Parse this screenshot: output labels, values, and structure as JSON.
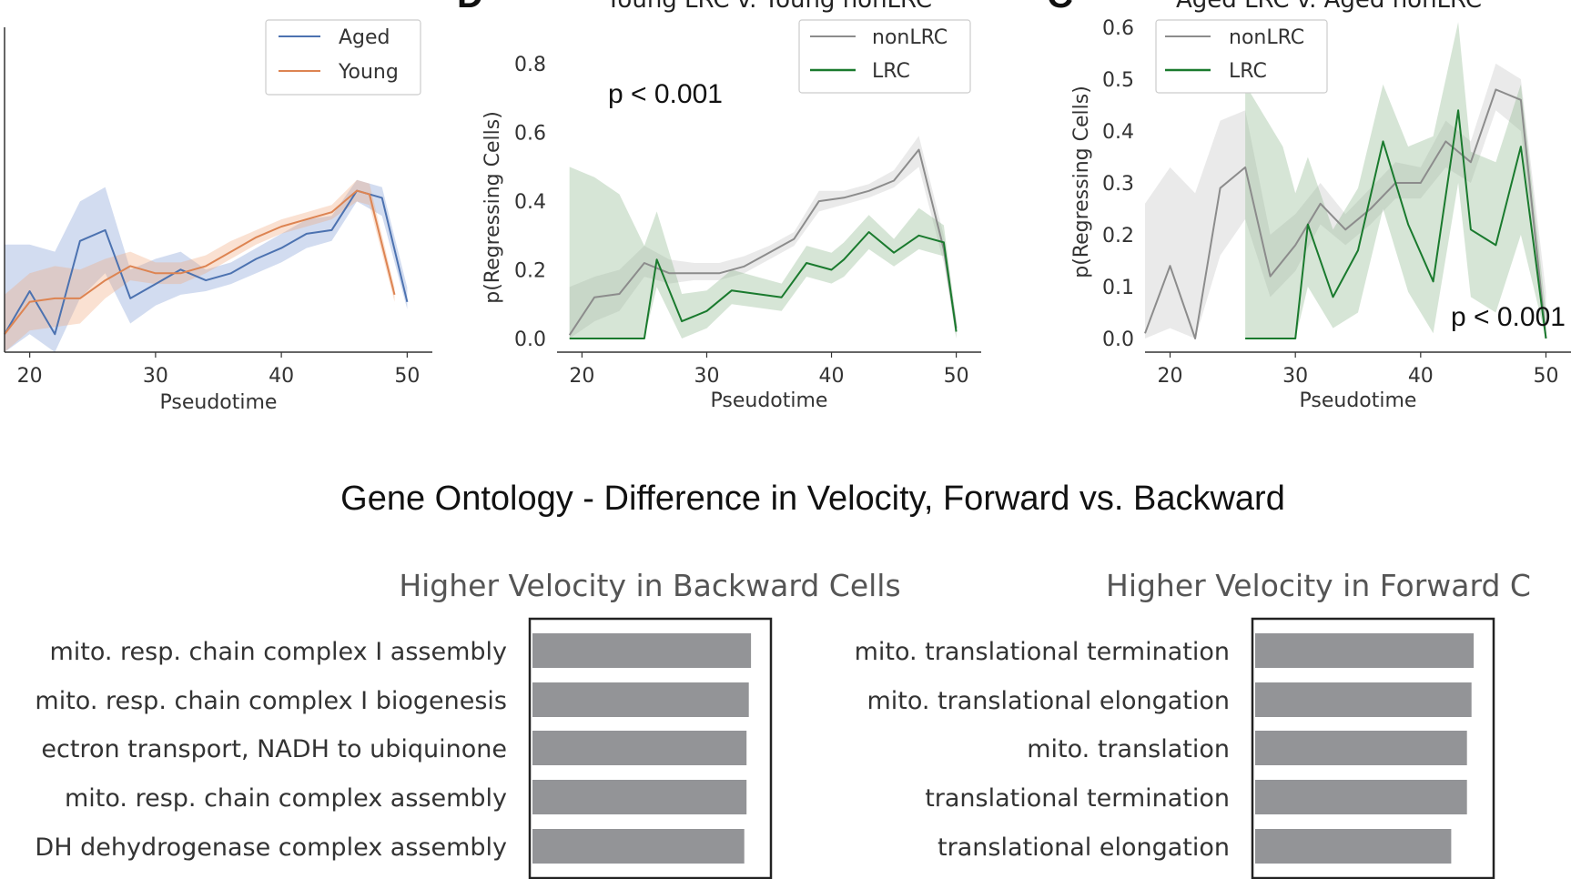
{
  "chart_data": [
    {
      "type": "line",
      "title": "",
      "xlabel": "Pseudotime",
      "ylabel": "",
      "xlim": [
        18,
        52
      ],
      "ylim": [
        0,
        0.88
      ],
      "x_ticks": [
        20,
        30,
        40,
        50
      ],
      "y_ticks": [],
      "legend_position": "top-right",
      "pvalue": "",
      "series": [
        {
          "name": "Aged",
          "color": "#4c72b0",
          "x": [
            18,
            20,
            22,
            24,
            26,
            28,
            30,
            32,
            34,
            36,
            38,
            40,
            42,
            44,
            46,
            48,
            50
          ],
          "y": [
            0.05,
            0.17,
            0.05,
            0.31,
            0.34,
            0.15,
            0.19,
            0.23,
            0.2,
            0.22,
            0.26,
            0.29,
            0.33,
            0.34,
            0.45,
            0.43,
            0.14
          ],
          "lo": [
            0.0,
            0.05,
            0.0,
            0.15,
            0.22,
            0.08,
            0.13,
            0.16,
            0.17,
            0.19,
            0.22,
            0.25,
            0.29,
            0.31,
            0.42,
            0.38,
            0.12
          ],
          "hi": [
            0.3,
            0.3,
            0.28,
            0.42,
            0.46,
            0.23,
            0.26,
            0.28,
            0.23,
            0.25,
            0.29,
            0.33,
            0.37,
            0.38,
            0.48,
            0.46,
            0.18
          ]
        },
        {
          "name": "Young",
          "color": "#dd8452",
          "x": [
            18,
            20,
            22,
            24,
            26,
            28,
            30,
            32,
            34,
            36,
            38,
            40,
            42,
            44,
            46,
            47,
            49
          ],
          "y": [
            0.05,
            0.14,
            0.15,
            0.15,
            0.2,
            0.24,
            0.22,
            0.22,
            0.24,
            0.28,
            0.32,
            0.35,
            0.37,
            0.39,
            0.45,
            0.44,
            0.16
          ],
          "lo": [
            0.0,
            0.06,
            0.07,
            0.08,
            0.15,
            0.2,
            0.19,
            0.19,
            0.22,
            0.26,
            0.3,
            0.33,
            0.35,
            0.37,
            0.42,
            0.41,
            0.14
          ],
          "hi": [
            0.16,
            0.22,
            0.24,
            0.23,
            0.26,
            0.28,
            0.25,
            0.25,
            0.27,
            0.31,
            0.34,
            0.37,
            0.39,
            0.41,
            0.48,
            0.47,
            0.18
          ]
        }
      ]
    },
    {
      "type": "line",
      "title": "Young LRC v. Young nonLRC",
      "xlabel": "Pseudotime",
      "ylabel": "p(Regressing Cells)",
      "xlim": [
        18,
        52
      ],
      "ylim": [
        0,
        0.88
      ],
      "x_ticks": [
        20,
        30,
        40,
        50
      ],
      "y_ticks": [
        "0.0",
        "0.2",
        "0.4",
        "0.6",
        "0.8"
      ],
      "legend_position": "top-right",
      "pvalue": "p < 0.001",
      "series": [
        {
          "name": "nonLRC",
          "color": "#8c8c8c",
          "x": [
            19,
            21,
            23,
            25,
            27,
            29,
            31,
            33,
            35,
            37,
            39,
            41,
            43,
            45,
            47,
            49,
            50
          ],
          "y": [
            0.01,
            0.12,
            0.13,
            0.22,
            0.19,
            0.19,
            0.19,
            0.21,
            0.25,
            0.29,
            0.4,
            0.41,
            0.43,
            0.46,
            0.55,
            0.26,
            0.03
          ],
          "lo": [
            0.0,
            0.05,
            0.08,
            0.18,
            0.16,
            0.17,
            0.17,
            0.19,
            0.23,
            0.27,
            0.37,
            0.39,
            0.41,
            0.44,
            0.5,
            0.22,
            0.0
          ],
          "hi": [
            0.15,
            0.18,
            0.2,
            0.27,
            0.23,
            0.22,
            0.22,
            0.24,
            0.27,
            0.31,
            0.43,
            0.43,
            0.45,
            0.49,
            0.59,
            0.3,
            0.06
          ]
        },
        {
          "name": "LRC",
          "color": "#1a7a2e",
          "x": [
            19,
            21,
            23,
            25,
            26,
            28,
            30,
            32,
            34,
            36,
            38,
            40,
            41,
            43,
            45,
            47,
            49,
            50
          ],
          "y": [
            0.0,
            0.0,
            0.0,
            0.0,
            0.23,
            0.05,
            0.08,
            0.14,
            0.13,
            0.12,
            0.22,
            0.2,
            0.23,
            0.31,
            0.25,
            0.3,
            0.28,
            0.02
          ],
          "lo": [
            0.0,
            0.0,
            0.0,
            0.0,
            0.15,
            0.0,
            0.03,
            0.1,
            0.09,
            0.08,
            0.18,
            0.16,
            0.18,
            0.26,
            0.21,
            0.26,
            0.24,
            0.0
          ],
          "hi": [
            0.5,
            0.47,
            0.42,
            0.27,
            0.37,
            0.13,
            0.14,
            0.2,
            0.18,
            0.16,
            0.27,
            0.25,
            0.28,
            0.36,
            0.29,
            0.38,
            0.33,
            0.05
          ]
        }
      ]
    },
    {
      "type": "line",
      "title": "Aged LRC v. Aged nonLRC",
      "xlabel": "Pseudotime",
      "ylabel": "p(Regressing Cells)",
      "xlim": [
        18,
        52
      ],
      "ylim": [
        0,
        0.6
      ],
      "x_ticks": [
        20,
        30,
        40,
        50
      ],
      "y_ticks": [
        "0.0",
        "0.1",
        "0.2",
        "0.3",
        "0.4",
        "0.5",
        "0.6"
      ],
      "legend_position": "top-left",
      "pvalue": "p < 0.001",
      "series": [
        {
          "name": "nonLRC",
          "color": "#8c8c8c",
          "x": [
            18,
            20,
            22,
            24,
            26,
            28,
            30,
            32,
            34,
            36,
            38,
            40,
            42,
            44,
            46,
            48,
            50
          ],
          "y": [
            0.01,
            0.14,
            0.0,
            0.29,
            0.33,
            0.12,
            0.18,
            0.26,
            0.21,
            0.25,
            0.3,
            0.3,
            0.38,
            0.34,
            0.48,
            0.46,
            0.0
          ],
          "lo": [
            0.0,
            0.02,
            0.0,
            0.16,
            0.23,
            0.08,
            0.13,
            0.22,
            0.18,
            0.22,
            0.27,
            0.27,
            0.33,
            0.3,
            0.44,
            0.4,
            0.0
          ],
          "hi": [
            0.26,
            0.33,
            0.28,
            0.42,
            0.44,
            0.2,
            0.24,
            0.3,
            0.24,
            0.29,
            0.34,
            0.33,
            0.42,
            0.38,
            0.53,
            0.5,
            0.09
          ]
        },
        {
          "name": "LRC",
          "color": "#1a7a2e",
          "x": [
            26,
            28,
            29,
            30,
            31,
            33,
            35,
            37,
            39,
            41,
            43,
            44,
            46,
            48,
            50
          ],
          "y": [
            0.0,
            0.0,
            0.0,
            0.0,
            0.22,
            0.08,
            0.17,
            0.38,
            0.22,
            0.11,
            0.44,
            0.21,
            0.18,
            0.37,
            0.0
          ],
          "lo": [
            0.0,
            0.0,
            0.0,
            0.0,
            0.1,
            0.02,
            0.05,
            0.25,
            0.09,
            0.01,
            0.3,
            0.08,
            0.05,
            0.2,
            0.0
          ],
          "hi": [
            0.49,
            0.41,
            0.37,
            0.28,
            0.35,
            0.21,
            0.29,
            0.49,
            0.37,
            0.39,
            0.61,
            0.36,
            0.34,
            0.49,
            0.05
          ]
        }
      ]
    },
    {
      "type": "bar",
      "orientation": "horizontal",
      "title": "Higher Velocity in Backward Cells",
      "categories": [
        "mito. resp. chain complex I assembly",
        "mito. resp. chain complex I biogenesis",
        "ectron transport, NADH to ubiquinone",
        "mito. resp. chain complex assembly",
        "DH dehydrogenase complex assembly"
      ],
      "values": [
        0.97,
        0.96,
        0.95,
        0.95,
        0.94
      ],
      "color": "#939497",
      "xlim": [
        0,
        1.03
      ]
    },
    {
      "type": "bar",
      "orientation": "horizontal",
      "title": "Higher Velocity in Forward C",
      "categories": [
        "mito. translational termination",
        "mito. translational elongation",
        "mito. translation",
        "translational termination",
        "translational elongation"
      ],
      "values": [
        0.97,
        0.96,
        0.94,
        0.94,
        0.87
      ],
      "color": "#939497",
      "xlim": [
        0,
        1.03
      ]
    }
  ],
  "figure_title": "Gene Ontology - Difference in Velocity, Forward vs. Backward",
  "panel_letters": [
    "D",
    "C"
  ]
}
